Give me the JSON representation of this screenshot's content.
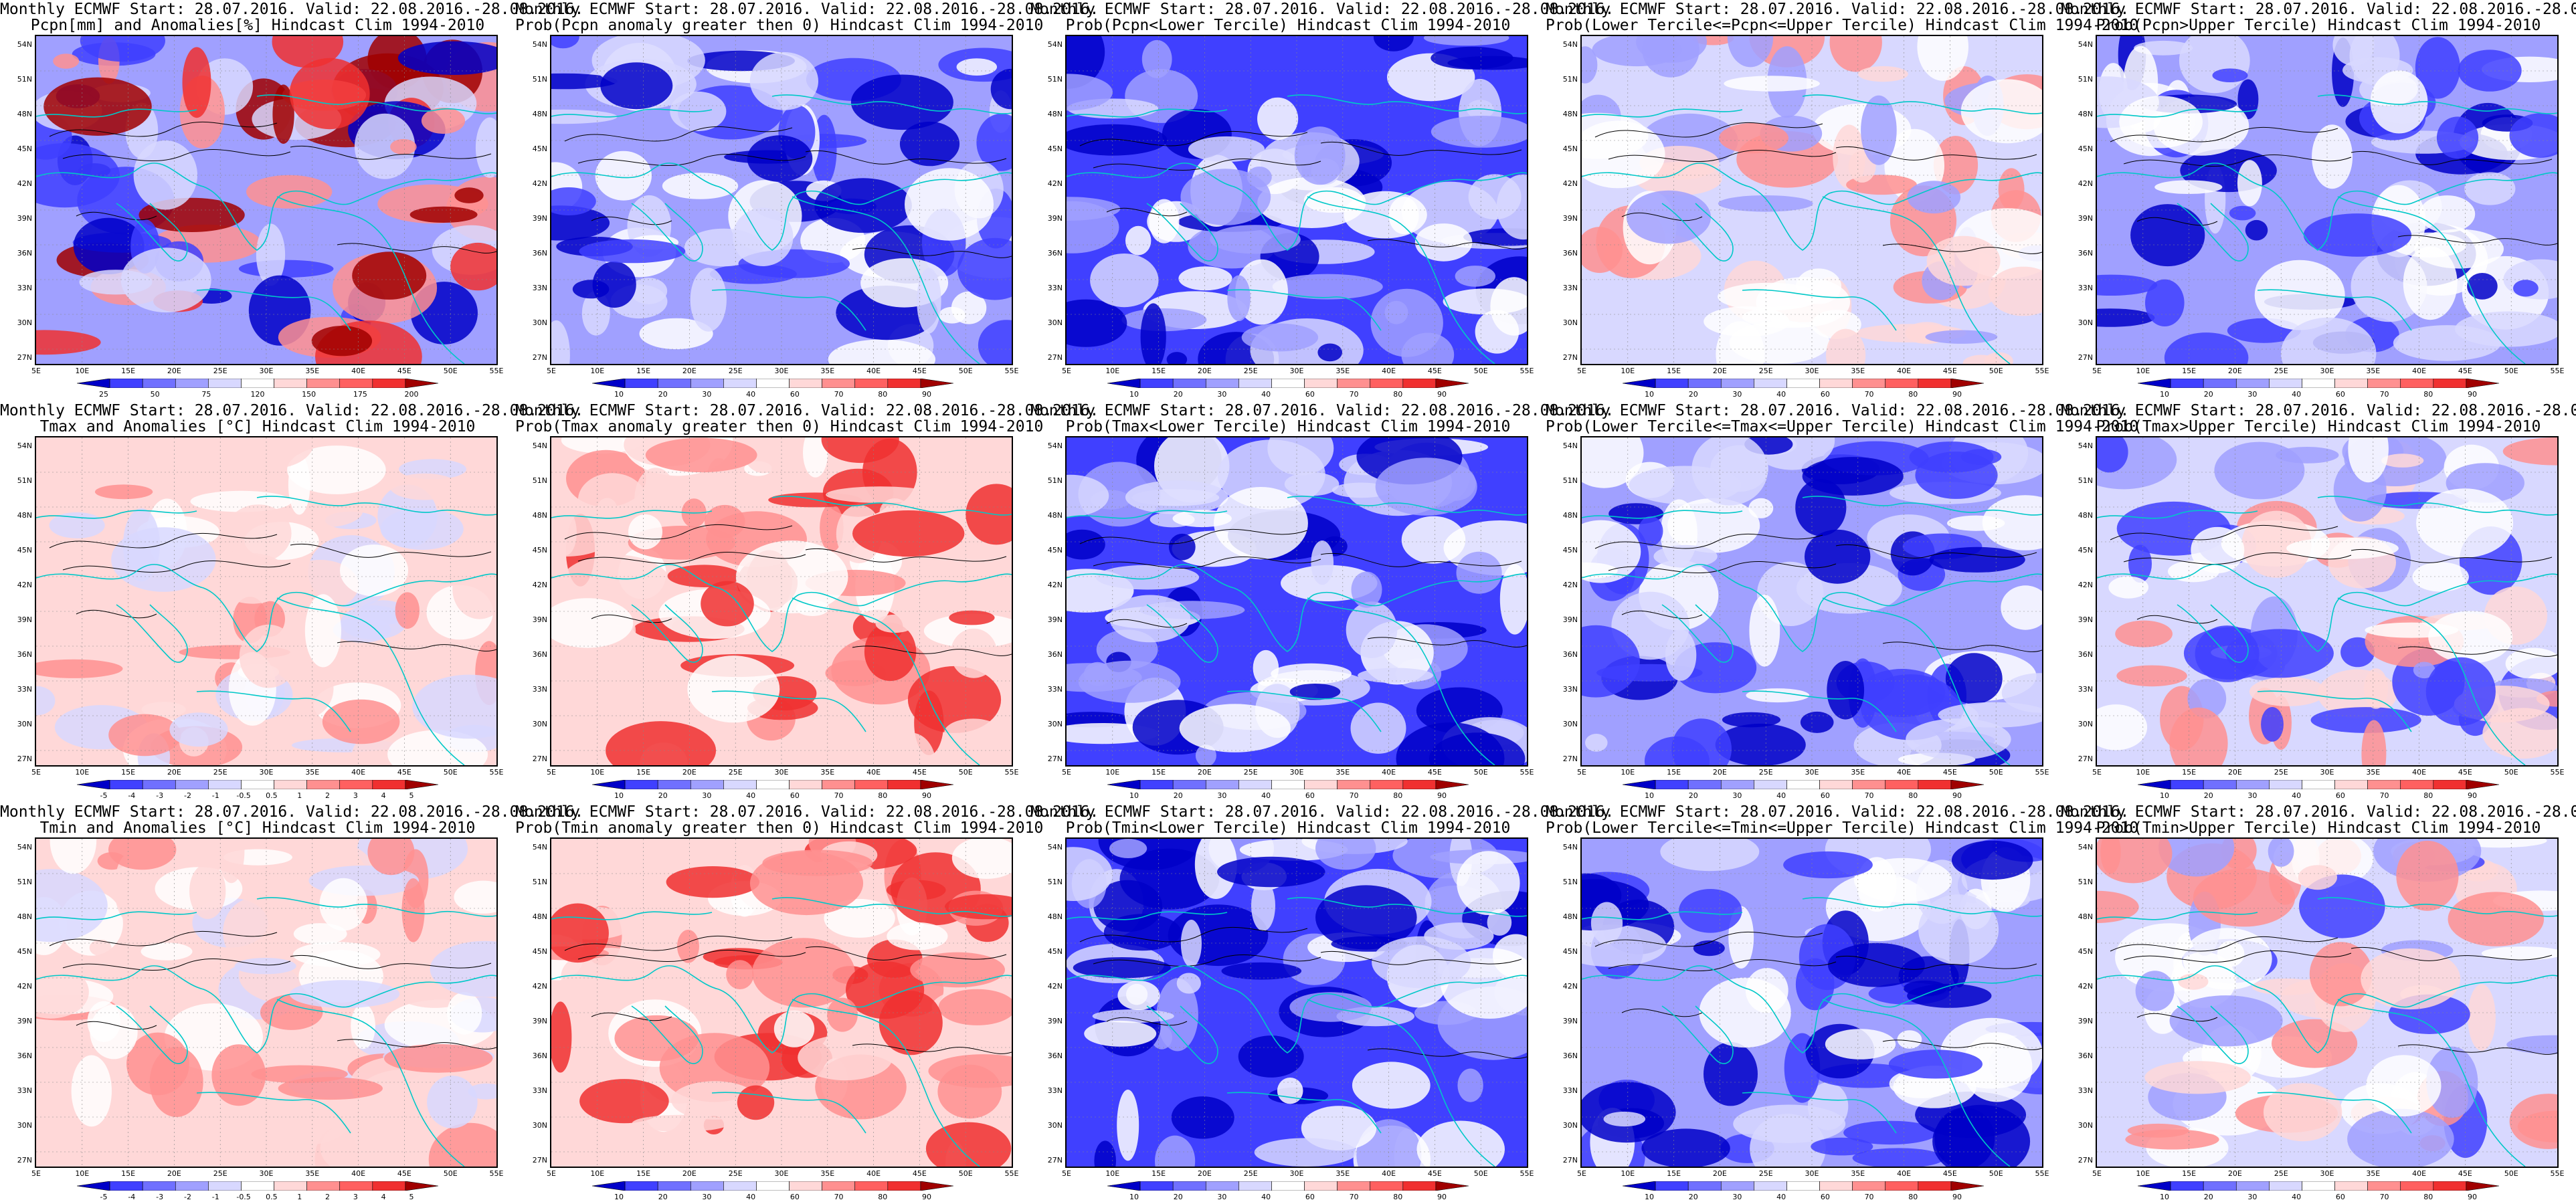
{
  "common": {
    "title_line1": "Monthly ECMWF Start: 28.07.2016. Valid: 22.08.2016.-28.08.2016.",
    "lat_ticks": [
      "54N",
      "51N",
      "48N",
      "45N",
      "42N",
      "39N",
      "36N",
      "33N",
      "30N",
      "27N"
    ],
    "lon_ticks": [
      "5E",
      "10E",
      "15E",
      "20E",
      "25E",
      "30E",
      "35E",
      "40E",
      "45E",
      "50E",
      "55E"
    ],
    "prob_levels": [
      "10",
      "20",
      "30",
      "40",
      "60",
      "70",
      "80",
      "90"
    ]
  },
  "colors": {
    "deep_blue": "#0000c8",
    "mid_blue": "#4040ff",
    "light_blue": "#a0a0ff",
    "pale_blue": "#d8d8ff",
    "white": "#ffffff",
    "pale_red": "#ffd8d8",
    "light_red": "#ff9090",
    "mid_red": "#f03030",
    "dark_red": "#a00000",
    "coast": "#00c8c8",
    "contour": "#000000"
  },
  "rows": [
    {
      "variable": "Pcpn",
      "panels": [
        {
          "line2": "Pcpn[mm] and Anomalies[%] Hindcast Clim 1994-2010",
          "scheme": "precip_anom",
          "colorbar_labels": [
            "25",
            "50",
            "75",
            "120",
            "150",
            "175",
            "200"
          ]
        },
        {
          "line2": "Prob(Pcpn anomaly greater then 0) Hindcast Clim 1994-2010",
          "scheme": "blue_heavy",
          "colorbar_labels": []
        },
        {
          "line2": "Prob(Pcpn<Lower Tercile) Hindcast Clim 1994-2010",
          "scheme": "blue_deep",
          "colorbar_labels": []
        },
        {
          "line2": "Prob(Lower Tercile<=Pcpn<=Upper Tercile) Hindcast Clim 1994-2010",
          "scheme": "red_south",
          "colorbar_labels": []
        },
        {
          "line2": "Prob(Pcpn>Upper Tercile) Hindcast Clim 1994-2010",
          "scheme": "blue_heavy",
          "colorbar_labels": []
        }
      ]
    },
    {
      "variable": "Tmax",
      "panels": [
        {
          "line2": "Tmax and Anomalies [°C] Hindcast Clim 1994-2010",
          "scheme": "temp_anom",
          "colorbar_labels": [
            "-5",
            "-4",
            "-3",
            "-2",
            "-1",
            "-0.5",
            "0.5",
            "1",
            "2",
            "3",
            "4",
            "5"
          ]
        },
        {
          "line2": "Prob(Tmax anomaly greater then 0) Hindcast Clim 1994-2010",
          "scheme": "red_heavy",
          "colorbar_labels": []
        },
        {
          "line2": "Prob(Tmax<Lower Tercile) Hindcast Clim 1994-2010",
          "scheme": "blue_deep",
          "colorbar_labels": []
        },
        {
          "line2": "Prob(Lower Tercile<=Tmax<=Upper Tercile) Hindcast Clim 1994-2010",
          "scheme": "blue_mid",
          "colorbar_labels": []
        },
        {
          "line2": "Prob(Tmax>Upper Tercile) Hindcast Clim 1994-2010",
          "scheme": "mixed",
          "colorbar_labels": []
        }
      ]
    },
    {
      "variable": "Tmin",
      "panels": [
        {
          "line2": "Tmin and Anomalies [°C] Hindcast Clim 1994-2010",
          "scheme": "temp_anom",
          "colorbar_labels": [
            "-5",
            "-4",
            "-3",
            "-2",
            "-1",
            "-0.5",
            "0.5",
            "1",
            "2",
            "3",
            "4",
            "5"
          ]
        },
        {
          "line2": "Prob(Tmin anomaly greater then 0) Hindcast Clim 1994-2010",
          "scheme": "red_heavy",
          "colorbar_labels": []
        },
        {
          "line2": "Prob(Tmin<Lower Tercile) Hindcast Clim 1994-2010",
          "scheme": "blue_deep",
          "colorbar_labels": []
        },
        {
          "line2": "Prob(Lower Tercile<=Tmin<=Upper Tercile) Hindcast Clim 1994-2010",
          "scheme": "blue_mid",
          "colorbar_labels": []
        },
        {
          "line2": "Prob(Tmin>Upper Tercile) Hindcast Clim 1994-2010",
          "scheme": "mixed",
          "colorbar_labels": []
        }
      ]
    }
  ]
}
